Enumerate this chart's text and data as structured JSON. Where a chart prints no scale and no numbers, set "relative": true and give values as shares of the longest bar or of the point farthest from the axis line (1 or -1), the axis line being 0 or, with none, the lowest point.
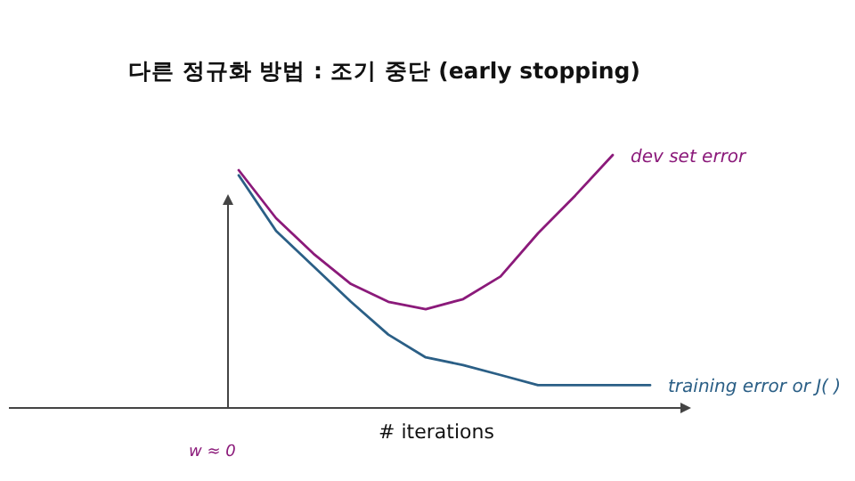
{
  "chart_data": {
    "type": "line",
    "title": "다른 정규화 방법 : 조기 중단 (early stopping)",
    "xlabel": "# iterations",
    "relative": true,
    "categories": [
      null,
      null,
      null,
      null,
      null,
      null,
      null,
      null,
      null,
      null,
      null,
      null
    ],
    "series": [
      {
        "name": "dev set error",
        "color": "#8b1a7a",
        "values": [
          0.94,
          0.75,
          0.61,
          0.49,
          0.42,
          0.39,
          0.43,
          0.52,
          0.69,
          0.84,
          1.0,
          null
        ]
      },
      {
        "name": "training error or J( )",
        "color": "#2b5f86",
        "values": [
          0.92,
          0.7,
          0.56,
          0.42,
          0.29,
          0.2,
          0.17,
          0.13,
          0.09,
          0.09,
          0.09,
          0.09
        ]
      }
    ],
    "annotations": [
      "w ≈ 0"
    ]
  }
}
